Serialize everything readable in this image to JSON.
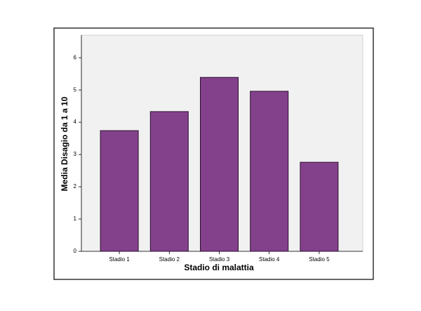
{
  "chart_data": {
    "type": "bar",
    "x_label": "Stadio di malattia",
    "y_label": "Media Disagio da 1 a 10",
    "categories": [
      "Stadio 1",
      "Stadio 2",
      "Stadio 3",
      "Stadio 4",
      "Stadio 5"
    ],
    "values": [
      3.74,
      4.33,
      5.39,
      4.96,
      2.76
    ],
    "color": "#84418b",
    "ylim": [
      0,
      6.7
    ],
    "yticks": [
      0,
      1,
      2,
      3,
      4,
      5,
      6
    ]
  }
}
